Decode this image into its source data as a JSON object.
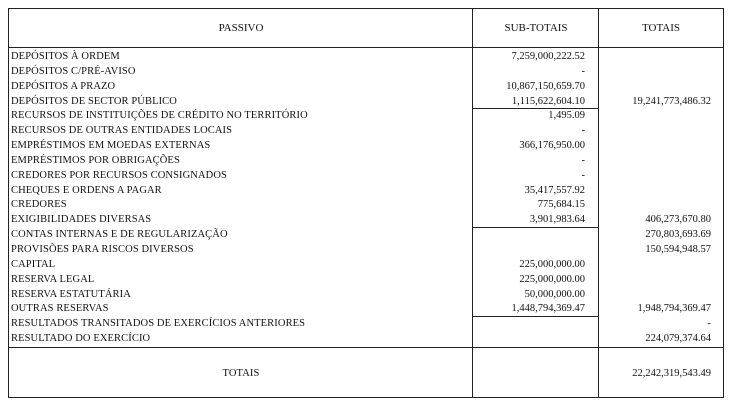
{
  "header": {
    "col1": "PASSIVO",
    "col2": "SUB-TOTAIS",
    "col3": "TOTAIS"
  },
  "rows": [
    {
      "label": "DEPÓSITOS À ORDEM",
      "sub": "7,259,000,222.52",
      "total": ""
    },
    {
      "label": "DEPÓSITOS C/PRÉ-AVISO",
      "sub": "-",
      "total": ""
    },
    {
      "label": "DEPÓSITOS A PRAZO",
      "sub": "10,867,150,659.70",
      "total": ""
    },
    {
      "label": "DEPÓSITOS DE SECTOR PÚBLICO",
      "sub": "1,115,622,604.10",
      "total": "19,241,773,486.32"
    },
    {
      "label": "RECURSOS DE INSTITUIÇÕES DE CRÉDITO NO TERRITÓRIO",
      "sub": "1,495.09",
      "total": ""
    },
    {
      "label": "RECURSOS DE OUTRAS ENTIDADES LOCAIS",
      "sub": "-",
      "total": ""
    },
    {
      "label": "EMPRÉSTIMOS EM MOEDAS EXTERNAS",
      "sub": "366,176,950.00",
      "total": ""
    },
    {
      "label": "EMPRÉSTIMOS POR OBRIGAÇÕES",
      "sub": "-",
      "total": ""
    },
    {
      "label": "CREDORES POR RECURSOS CONSIGNADOS",
      "sub": "-",
      "total": ""
    },
    {
      "label": "CHEQUES E ORDENS A PAGAR",
      "sub": "35,417,557.92",
      "total": ""
    },
    {
      "label": "CREDORES",
      "sub": "775,684.15",
      "total": ""
    },
    {
      "label": "EXIGIBILIDADES DIVERSAS",
      "sub": "3,901,983.64",
      "total": "406,273,670.80"
    },
    {
      "label": "CONTAS INTERNAS E DE REGULARIZAÇÃO",
      "sub": "",
      "total": "270,803,693.69"
    },
    {
      "label": "PROVISÕES PARA RISCOS DIVERSOS",
      "sub": "",
      "total": "150,594,948.57"
    },
    {
      "label": "CAPITAL",
      "sub": "225,000,000.00",
      "total": ""
    },
    {
      "label": "RESERVA LEGAL",
      "sub": "225,000,000.00",
      "total": ""
    },
    {
      "label": "RESERVA ESTATUTÁRIA",
      "sub": "50,000,000.00",
      "total": ""
    },
    {
      "label": "OUTRAS RESERVAS",
      "sub": "1,448,794,369.47",
      "total": "1,948,794,369.47"
    },
    {
      "label": "RESULTADOS TRANSITADOS DE EXERCÍCIOS ANTERIORES",
      "sub": "",
      "total": "-"
    },
    {
      "label": "RESULTADO DO EXERCÍCIO",
      "sub": "",
      "total": "224,079,374.64"
    }
  ],
  "footer": {
    "label": "TOTAIS",
    "sub": "",
    "total": "22,242,319,543.49"
  }
}
